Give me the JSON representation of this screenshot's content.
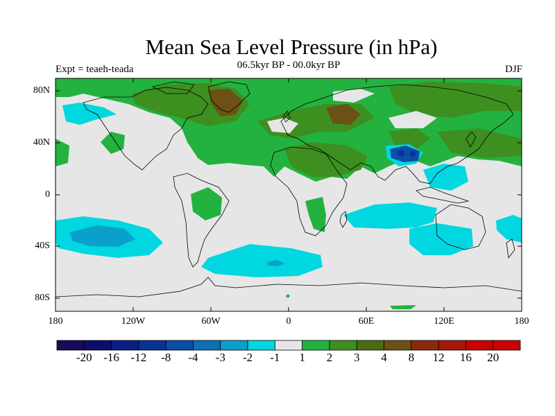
{
  "title": "Mean Sea Level Pressure (in hPa)",
  "subtitle": "06.5kyr BP - 00.0kyr BP",
  "experiment": "Expt = teaeh-teada",
  "season": "DJF",
  "lat_labels": [
    "80N",
    "40N",
    "0",
    "40S",
    "80S"
  ],
  "lon_labels": [
    "180",
    "120W",
    "60W",
    "0",
    "60E",
    "120E",
    "180"
  ],
  "colorbar": {
    "levels": [
      "-20",
      "-16",
      "-12",
      "-8",
      "-4",
      "-3",
      "-2",
      "-1",
      "1",
      "2",
      "3",
      "4",
      "8",
      "12",
      "16",
      "20"
    ],
    "colors": [
      "#1a0a5a",
      "#0d0d70",
      "#0a1e88",
      "#0a3296",
      "#0b4ea6",
      "#0d6fb8",
      "#0aa0cc",
      "#00d7e0",
      "#e6e6e6",
      "#23b23f",
      "#3d8f1f",
      "#4b6a12",
      "#6b5114",
      "#8c2a0c",
      "#a81708",
      "#c80000",
      "#cc0000"
    ]
  },
  "colors": {
    "background": "#e6e6e6",
    "coast": "#000000"
  }
}
